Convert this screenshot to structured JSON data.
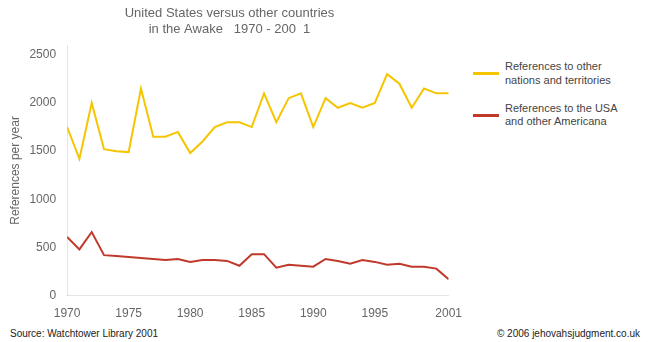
{
  "chart_data": {
    "type": "line",
    "title": "United States versus other countries\nin the Awake  1970 - 200 1",
    "y_label": "References per year",
    "annotations": [
      "Source: Watchtower Library 2001",
      "© 2006 jehovahsjudgment.co.uk"
    ],
    "x": [
      1970,
      1971,
      1972,
      1973,
      1974,
      1975,
      1976,
      1977,
      1978,
      1979,
      1980,
      1981,
      1982,
      1983,
      1984,
      1985,
      1986,
      1987,
      1988,
      1989,
      1990,
      1991,
      1992,
      1993,
      1994,
      1995,
      1996,
      1997,
      1998,
      1999,
      2000,
      2001
    ],
    "series": [
      {
        "name": "References to other\nnations and territories",
        "color": "#F5C500",
        "values": [
          1750,
          1420,
          2000,
          1520,
          1500,
          1490,
          2150,
          1650,
          1650,
          1700,
          1480,
          1600,
          1750,
          1800,
          1800,
          1750,
          2100,
          1800,
          2050,
          2100,
          1750,
          2050,
          1950,
          2000,
          1950,
          2000,
          2300,
          2200,
          1950,
          2150,
          2100,
          2100
        ]
      },
      {
        "name": "References to the USA\nand other Americana",
        "color": "#C0392B",
        "values": [
          610,
          480,
          660,
          420,
          410,
          400,
          390,
          380,
          370,
          380,
          350,
          370,
          370,
          360,
          310,
          430,
          430,
          290,
          320,
          310,
          300,
          380,
          360,
          330,
          370,
          350,
          320,
          330,
          300,
          300,
          280,
          170
        ]
      }
    ],
    "xlim": [
      1970,
      2001
    ],
    "xticks": [
      1970,
      1975,
      1980,
      1985,
      1990,
      1995,
      2001
    ],
    "ylim": [
      0,
      2600
    ],
    "yticks": [
      0,
      500,
      1000,
      1500,
      2000,
      2500
    ],
    "grid": false,
    "legend": "right"
  }
}
